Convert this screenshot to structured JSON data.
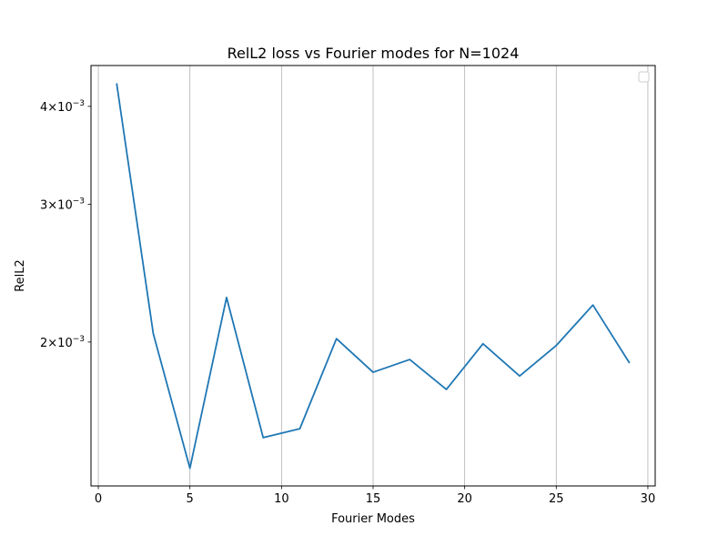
{
  "chart_data": {
    "type": "line",
    "title": "RelL2 loss vs Fourier modes for N=1024",
    "xlabel": "Fourier Modes",
    "ylabel": "RelL2",
    "yscale": "log",
    "xlim": [
      -0.4,
      30.4
    ],
    "ylim": [
      0.00131,
      0.00451
    ],
    "x_ticks": [
      {
        "value": 0,
        "label": "0"
      },
      {
        "value": 5,
        "label": "5"
      },
      {
        "value": 10,
        "label": "10"
      },
      {
        "value": 15,
        "label": "15"
      },
      {
        "value": 20,
        "label": "20"
      },
      {
        "value": 25,
        "label": "25"
      },
      {
        "value": 30,
        "label": "30"
      }
    ],
    "y_ticks": [
      {
        "value": 0.002,
        "mantissa": "2",
        "exponent": "−3"
      },
      {
        "value": 0.003,
        "mantissa": "3",
        "exponent": "−3"
      },
      {
        "value": 0.004,
        "mantissa": "4",
        "exponent": "−3"
      }
    ],
    "grid": "x-major",
    "legend": {
      "placement": "top-right",
      "entries": []
    },
    "series": [
      {
        "color": "#1f77b4",
        "x": [
          1,
          3,
          5,
          7,
          9,
          11,
          13,
          15,
          17,
          19,
          21,
          23,
          25,
          27,
          29
        ],
        "y": [
          0.00428,
          0.00205,
          0.00138,
          0.00228,
          0.00151,
          0.00155,
          0.00202,
          0.00183,
          0.0019,
          0.00174,
          0.00199,
          0.00181,
          0.00198,
          0.00223,
          0.00188
        ]
      }
    ]
  }
}
